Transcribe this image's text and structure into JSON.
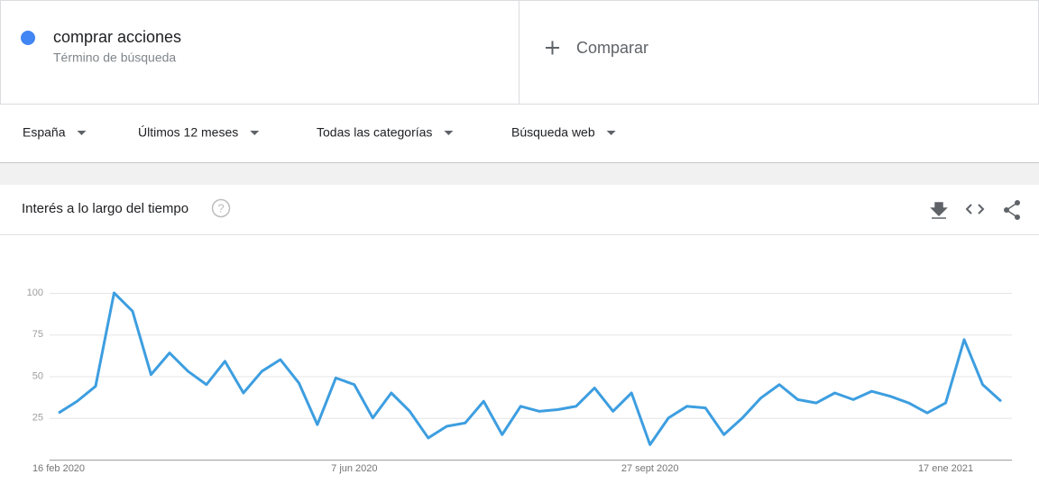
{
  "header": {
    "term": "comprar acciones",
    "term_type": "Término de búsqueda",
    "compare": "Comparar"
  },
  "filters": [
    "España",
    "Últimos 12 meses",
    "Todas las categorías",
    "Búsqueda web"
  ],
  "chart_data": {
    "type": "line",
    "title": "Interés a lo largo del tiempo",
    "categories": [
      "16 feb 2020",
      null,
      null,
      null,
      null,
      null,
      null,
      null,
      null,
      null,
      null,
      null,
      null,
      null,
      null,
      null,
      "7 jun 2020",
      null,
      null,
      null,
      null,
      null,
      null,
      null,
      null,
      null,
      null,
      null,
      null,
      null,
      null,
      null,
      "27 sept 2020",
      null,
      null,
      null,
      null,
      null,
      null,
      null,
      null,
      null,
      null,
      null,
      null,
      null,
      null,
      null,
      "17 ene 2021",
      null,
      null,
      null
    ],
    "series": [
      {
        "name": "comprar acciones",
        "color": "#3d9ee0",
        "values": [
          28,
          35,
          44,
          100,
          89,
          51,
          64,
          53,
          45,
          59,
          40,
          53,
          60,
          46,
          21,
          49,
          45,
          25,
          40,
          29,
          13,
          20,
          22,
          35,
          15,
          32,
          29,
          30,
          32,
          43,
          29,
          40,
          9,
          25,
          32,
          31,
          15,
          25,
          37,
          45,
          36,
          34,
          40,
          36,
          41,
          38,
          34,
          28,
          34,
          72,
          45,
          35
        ]
      }
    ],
    "ylim": [
      0,
      100
    ],
    "yticks": [
      25,
      50,
      75,
      100
    ],
    "grid": true
  }
}
